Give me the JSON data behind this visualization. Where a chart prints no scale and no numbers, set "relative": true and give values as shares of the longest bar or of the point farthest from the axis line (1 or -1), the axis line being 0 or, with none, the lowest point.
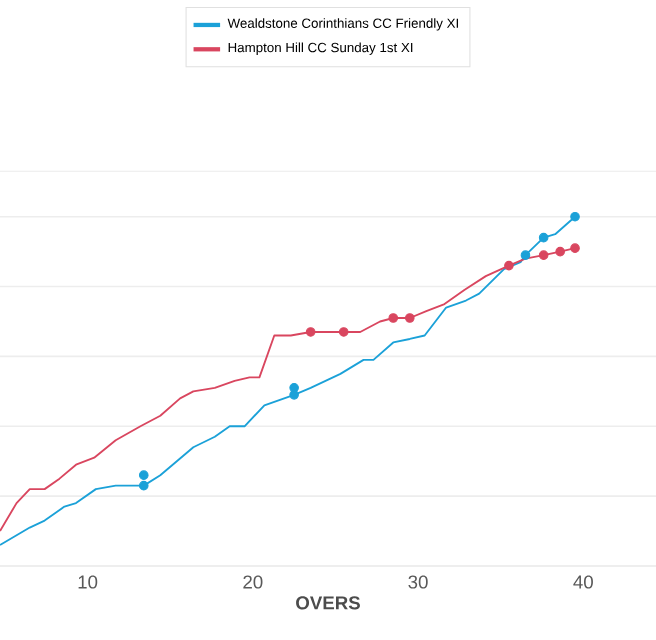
{
  "chart_data": {
    "type": "line",
    "relative": true,
    "xlabel": "OVERS",
    "xlim": [
      4.7,
      44.4
    ],
    "xticks": [
      10,
      20,
      30,
      40
    ],
    "grid": "y",
    "legend": "top",
    "series": [
      {
        "name": "Wealdstone Corinthians CC Friendly XI",
        "color": "#1ba1d8",
        "x": [
          4.7,
          6.5,
          7.4,
          8.6,
          9.3,
          10.5,
          11.7,
          13.4,
          14.4,
          16.4,
          17.7,
          18.6,
          19.5,
          20.7,
          22.5,
          23.5,
          24.4,
          25.3,
          26.7,
          27.3,
          28.5,
          29.5,
          30.4,
          31.7,
          32.9,
          33.7,
          35.2,
          36.2,
          36.5,
          37.6,
          38.3,
          39.5
        ],
        "values": [
          0.06,
          0.11,
          0.13,
          0.17,
          0.18,
          0.22,
          0.23,
          0.23,
          0.26,
          0.34,
          0.37,
          0.4,
          0.4,
          0.46,
          0.49,
          0.51,
          0.53,
          0.55,
          0.59,
          0.59,
          0.64,
          0.65,
          0.66,
          0.74,
          0.76,
          0.78,
          0.85,
          0.87,
          0.89,
          0.94,
          0.95,
          1.0
        ]
      },
      {
        "name": "Hampton Hill CC Sunday 1st XI",
        "color": "#d9465f",
        "x": [
          4.7,
          5.7,
          6.5,
          7.4,
          8.3,
          9.3,
          10.4,
          11.7,
          13.2,
          14.4,
          15.6,
          16.4,
          17.7,
          18.9,
          19.8,
          20.4,
          21.3,
          22.3,
          23.5,
          25.5,
          26.5,
          27.7,
          28.5,
          29.5,
          30.5,
          31.6,
          32.8,
          34.1,
          35.5,
          36.5,
          37.6,
          38.6,
          39.5
        ],
        "values": [
          0.1,
          0.18,
          0.22,
          0.22,
          0.25,
          0.29,
          0.31,
          0.36,
          0.4,
          0.43,
          0.48,
          0.5,
          0.51,
          0.53,
          0.54,
          0.54,
          0.66,
          0.66,
          0.67,
          0.67,
          0.67,
          0.7,
          0.71,
          0.71,
          0.73,
          0.75,
          0.79,
          0.83,
          0.86,
          0.88,
          0.89,
          0.9,
          0.91
        ]
      },
      {
        "type": "scatter",
        "marker": "circle",
        "color": "#1ba1d8",
        "x": [
          13.4,
          13.4,
          22.5,
          22.5,
          36.5,
          37.6,
          39.5
        ],
        "values": [
          0.26,
          0.23,
          0.51,
          0.49,
          0.89,
          0.94,
          1.0
        ]
      },
      {
        "type": "scatter",
        "marker": "circle",
        "color": "#d9465f",
        "x": [
          23.5,
          25.5,
          28.5,
          29.5,
          35.5,
          37.6,
          38.6,
          39.5
        ],
        "values": [
          0.67,
          0.67,
          0.71,
          0.71,
          0.86,
          0.89,
          0.9,
          0.91
        ]
      }
    ]
  }
}
